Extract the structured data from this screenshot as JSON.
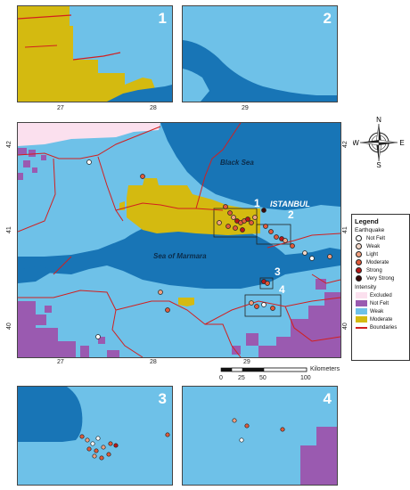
{
  "insets_top": [
    {
      "number": "1",
      "ticks": [
        "27",
        "28"
      ]
    },
    {
      "number": "2",
      "ticks": [
        "29"
      ]
    }
  ],
  "insets_bottom": [
    {
      "number": "3",
      "ticks": []
    },
    {
      "number": "4",
      "ticks": []
    }
  ],
  "main_map": {
    "labels": {
      "black_sea": "Black Sea",
      "marmara": "Sea of Marmara",
      "istanbul": "ISTANBUL"
    },
    "overlay_numbers": [
      "1",
      "2",
      "3",
      "4"
    ],
    "lon_ticks": [
      "27",
      "28",
      "29"
    ],
    "lat_ticks": [
      "42",
      "41",
      "40"
    ]
  },
  "compass": {
    "n": "N",
    "s": "S",
    "e": "E",
    "w": "W"
  },
  "scale_bar": {
    "unit": "Kilometers",
    "ticks": [
      "0",
      "25",
      "50",
      "100"
    ]
  },
  "legend": {
    "title": "Legend",
    "earthquake_title": "Earthquake",
    "earthquake": [
      {
        "label": "Not Felt",
        "color": "#ffffff"
      },
      {
        "label": "Weak",
        "color": "#f3d7c8"
      },
      {
        "label": "Light",
        "color": "#f0a080"
      },
      {
        "label": "Moderate",
        "color": "#e05a3a"
      },
      {
        "label": "Strong",
        "color": "#b81818"
      },
      {
        "label": "Very Strong",
        "color": "#3a0a0a"
      }
    ],
    "intensity_title": "Intensity",
    "intensity": [
      {
        "label": "Excluded",
        "color": "#fbe0ee"
      },
      {
        "label": "Not Felt",
        "color": "#9a5ab0"
      },
      {
        "label": "Weak",
        "color": "#6ec1e8"
      },
      {
        "label": "Moderate",
        "color": "#d4ba10"
      }
    ],
    "boundaries_label": "Boundaries"
  }
}
